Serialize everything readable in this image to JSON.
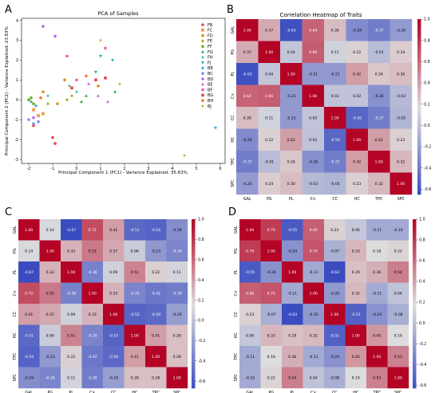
{
  "panel_labels": [
    "A",
    "B",
    "C",
    "D"
  ],
  "colors": {
    "cmap_low": "#3b4cc0",
    "cmap_mid": "#dddddd",
    "cmap_high": "#b40426",
    "legend_groups": [
      "#e8454a",
      "#e8812a",
      "#c99a12",
      "#a3a313",
      "#6db21a",
      "#2aaf45",
      "#1eb08c",
      "#1ea7ad",
      "#2c9ed8",
      "#7b8ef0",
      "#b36ef0",
      "#d75ee0",
      "#ee5aab"
    ]
  },
  "chart_data": [
    {
      "type": "scatter",
      "title": "PCA of Samples",
      "xlabel": "Principal Component 1 (PC1) - Variance Explained: 35.63%",
      "ylabel": "Principal Component 2 (PC2) - Variance Explained: 23.83%",
      "xlim": [
        -2.3,
        6.2
      ],
      "ylim": [
        -3.2,
        4.1
      ],
      "xticks": [
        -2,
        -1,
        0,
        1,
        2,
        3,
        4,
        5,
        6
      ],
      "yticks": [
        -3,
        -2,
        -1,
        0,
        1,
        2,
        3,
        4
      ],
      "grid": false,
      "legend_position": "top-right",
      "series": [
        {
          "name": "FB",
          "marker": "circle",
          "points": [
            [
              -0.9,
              -2.2
            ],
            [
              -1.0,
              -1.9
            ],
            [
              -1.8,
              -1.3
            ]
          ]
        },
        {
          "name": "FC",
          "marker": "x",
          "points": [
            [
              -1.8,
              -0.5
            ],
            [
              -1.6,
              -0.8
            ],
            [
              -1.4,
              -0.7
            ]
          ]
        },
        {
          "name": "FD",
          "marker": "circle",
          "points": [
            [
              -0.5,
              1.0
            ],
            [
              -1.4,
              0.4
            ],
            [
              -0.8,
              -0.2
            ]
          ]
        },
        {
          "name": "FE",
          "marker": "plus",
          "points": [
            [
              -0.4,
              0.0
            ],
            [
              -0.2,
              0.2
            ],
            [
              -1.2,
              -0.2
            ]
          ]
        },
        {
          "name": "FF",
          "marker": "circle",
          "points": [
            [
              -2.0,
              0.0
            ],
            [
              -1.8,
              -0.2
            ],
            [
              -1.9,
              0.1
            ]
          ]
        },
        {
          "name": "FG",
          "marker": "triangle-up",
          "points": [
            [
              0.4,
              0.2
            ],
            [
              1.6,
              0.4
            ],
            [
              0.2,
              -0.1
            ]
          ]
        },
        {
          "name": "FH",
          "marker": "star",
          "points": [
            [
              -1.2,
              0.2
            ],
            [
              -0.3,
              0.7
            ],
            [
              0.0,
              0.4
            ]
          ]
        },
        {
          "name": "FJ",
          "marker": "triangle-down",
          "points": [
            [
              1.0,
              2.2
            ],
            [
              1.5,
              2.0
            ],
            [
              0.8,
              1.4
            ]
          ]
        },
        {
          "name": "BB",
          "marker": "plus",
          "points": [
            [
              5.8,
              -1.4
            ],
            [
              -1.9,
              -0.1
            ],
            [
              -1.7,
              -0.3
            ]
          ]
        },
        {
          "name": "BC",
          "marker": "circle",
          "points": [
            [
              -2.0,
              -1.0
            ],
            [
              -1.8,
              -1.2
            ],
            [
              -1.6,
              -1.1
            ]
          ]
        },
        {
          "name": "BD",
          "marker": "circle",
          "points": [
            [
              -1.4,
              3.7
            ],
            [
              -0.9,
              3.2
            ],
            [
              -1.8,
              -0.9
            ]
          ]
        },
        {
          "name": "BE",
          "marker": "triangle-up",
          "points": [
            [
              0.9,
              0.2
            ],
            [
              0.5,
              0.8
            ],
            [
              1.3,
              -0.1
            ]
          ]
        },
        {
          "name": "BF",
          "marker": "circle",
          "points": [
            [
              -0.4,
              2.2
            ],
            [
              1.2,
              2.6
            ],
            [
              0.0,
              1.0
            ]
          ]
        },
        {
          "name": "BG",
          "marker": "square",
          "points": [
            [
              0.8,
              1.0
            ],
            [
              1.2,
              1.1
            ],
            [
              -0.2,
              0.6
            ]
          ]
        },
        {
          "name": "BH",
          "marker": "circle",
          "points": [
            [
              0.9,
              0.7
            ],
            [
              0.4,
              1.2
            ],
            [
              -1.5,
              0.1
            ]
          ]
        },
        {
          "name": "BJ",
          "marker": "star",
          "points": [
            [
              1.0,
              3.0
            ],
            [
              1.8,
              0.8
            ],
            [
              4.5,
              -2.8
            ]
          ]
        }
      ]
    },
    {
      "type": "heatmap",
      "panel": "B",
      "title": "Correlation Heatmap of Traits",
      "xlabel": "",
      "ylabel": "",
      "categories": [
        "GAL",
        "PG",
        "PL",
        "C×",
        "CC",
        "HC",
        "TPC",
        "SPC"
      ],
      "values": [
        [
          1.0,
          0.37,
          -0.63,
          0.64,
          0.3,
          -0.29,
          -0.37,
          -0.2
        ],
        [
          0.37,
          1.0,
          0.04,
          0.66,
          0.11,
          0.22,
          -0.01,
          0.24
        ],
        [
          -0.63,
          0.04,
          1.0,
          -0.21,
          -0.21,
          0.42,
          0.26,
          0.3
        ],
        [
          0.64,
          0.66,
          -0.21,
          1.0,
          0.03,
          0.02,
          -0.26,
          -0.03
        ],
        [
          0.3,
          0.11,
          -0.21,
          0.03,
          1.0,
          -0.5,
          -0.37,
          -0.05
        ],
        [
          -0.29,
          0.22,
          0.42,
          0.02,
          -0.5,
          1.0,
          0.42,
          0.23
        ],
        [
          -0.37,
          -0.01,
          0.26,
          -0.26,
          -0.37,
          0.42,
          1.0,
          0.32
        ],
        [
          -0.2,
          0.24,
          0.3,
          -0.03,
          -0.05,
          0.23,
          0.32,
          1.0
        ]
      ],
      "colorbar_ticks": [
        -0.6,
        -0.4,
        -0.2,
        0.0,
        0.2,
        0.4,
        0.6,
        0.8,
        1.0
      ],
      "vmin": -0.65,
      "vmax": 1.0
    },
    {
      "type": "heatmap",
      "panel": "C",
      "title": "",
      "xlabel": "",
      "ylabel": "",
      "categories": [
        "GAL",
        "PG",
        "PL",
        "C×",
        "CC",
        "HC",
        "TPC",
        "SPC"
      ],
      "values": [
        [
          1.0,
          0.14,
          -0.67,
          0.72,
          0.41,
          -0.51,
          -0.54,
          -0.29
        ],
        [
          0.14,
          1.0,
          0.33,
          0.55,
          0.37,
          0.06,
          -0.23,
          -0.34
        ],
        [
          -0.67,
          0.33,
          1.0,
          -0.36,
          0.09,
          0.51,
          0.22,
          0.11
        ],
        [
          0.72,
          0.55,
          -0.36,
          1.0,
          0.33,
          -0.35,
          -0.42,
          -0.39
        ],
        [
          0.41,
          0.37,
          0.09,
          0.33,
          1.0,
          -0.53,
          -0.5,
          -0.2
        ],
        [
          -0.51,
          0.06,
          0.51,
          -0.35,
          -0.53,
          1.0,
          0.41,
          0.28
        ],
        [
          -0.54,
          -0.23,
          0.22,
          -0.42,
          -0.5,
          0.41,
          1.0,
          0.28
        ],
        [
          -0.29,
          -0.34,
          0.11,
          -0.39,
          -0.2,
          0.28,
          0.28,
          1.0
        ]
      ],
      "colorbar_ticks": [
        -0.6,
        -0.4,
        -0.2,
        0.0,
        0.2,
        0.4,
        0.6,
        0.8,
        1.0
      ],
      "vmin": -0.67,
      "vmax": 1.0
    },
    {
      "type": "heatmap",
      "panel": "D",
      "title": "",
      "xlabel": "",
      "ylabel": "",
      "categories": [
        "GAL",
        "PG",
        "PL",
        "C×",
        "CC",
        "HC",
        "TPC",
        "SPC"
      ],
      "values": [
        [
          1.0,
          0.79,
          -0.55,
          0.66,
          0.23,
          0.06,
          -0.11,
          -0.1
        ],
        [
          0.79,
          1.0,
          -0.24,
          0.7,
          -0.07,
          0.33,
          0.18,
          0.22
        ],
        [
          -0.55,
          -0.24,
          1.0,
          -0.11,
          -0.63,
          0.29,
          0.36,
          0.54
        ],
        [
          0.66,
          0.7,
          -0.11,
          1.0,
          -0.2,
          0.32,
          -0.11,
          0.04
        ],
        [
          0.23,
          -0.07,
          -0.63,
          -0.2,
          1.0,
          -0.51,
          -0.24,
          -0.08
        ],
        [
          0.06,
          0.33,
          0.29,
          0.32,
          -0.51,
          1.0,
          0.45,
          0.19
        ],
        [
          -0.11,
          0.18,
          0.36,
          -0.11,
          -0.24,
          0.45,
          1.0,
          0.53
        ],
        [
          -0.1,
          0.22,
          0.54,
          0.04,
          -0.08,
          0.19,
          0.53,
          1.0
        ]
      ],
      "colorbar_ticks": [
        -0.6,
        -0.4,
        -0.2,
        0.0,
        0.2,
        0.4,
        0.6,
        0.8,
        1.0
      ],
      "vmin": -0.63,
      "vmax": 1.0
    }
  ]
}
